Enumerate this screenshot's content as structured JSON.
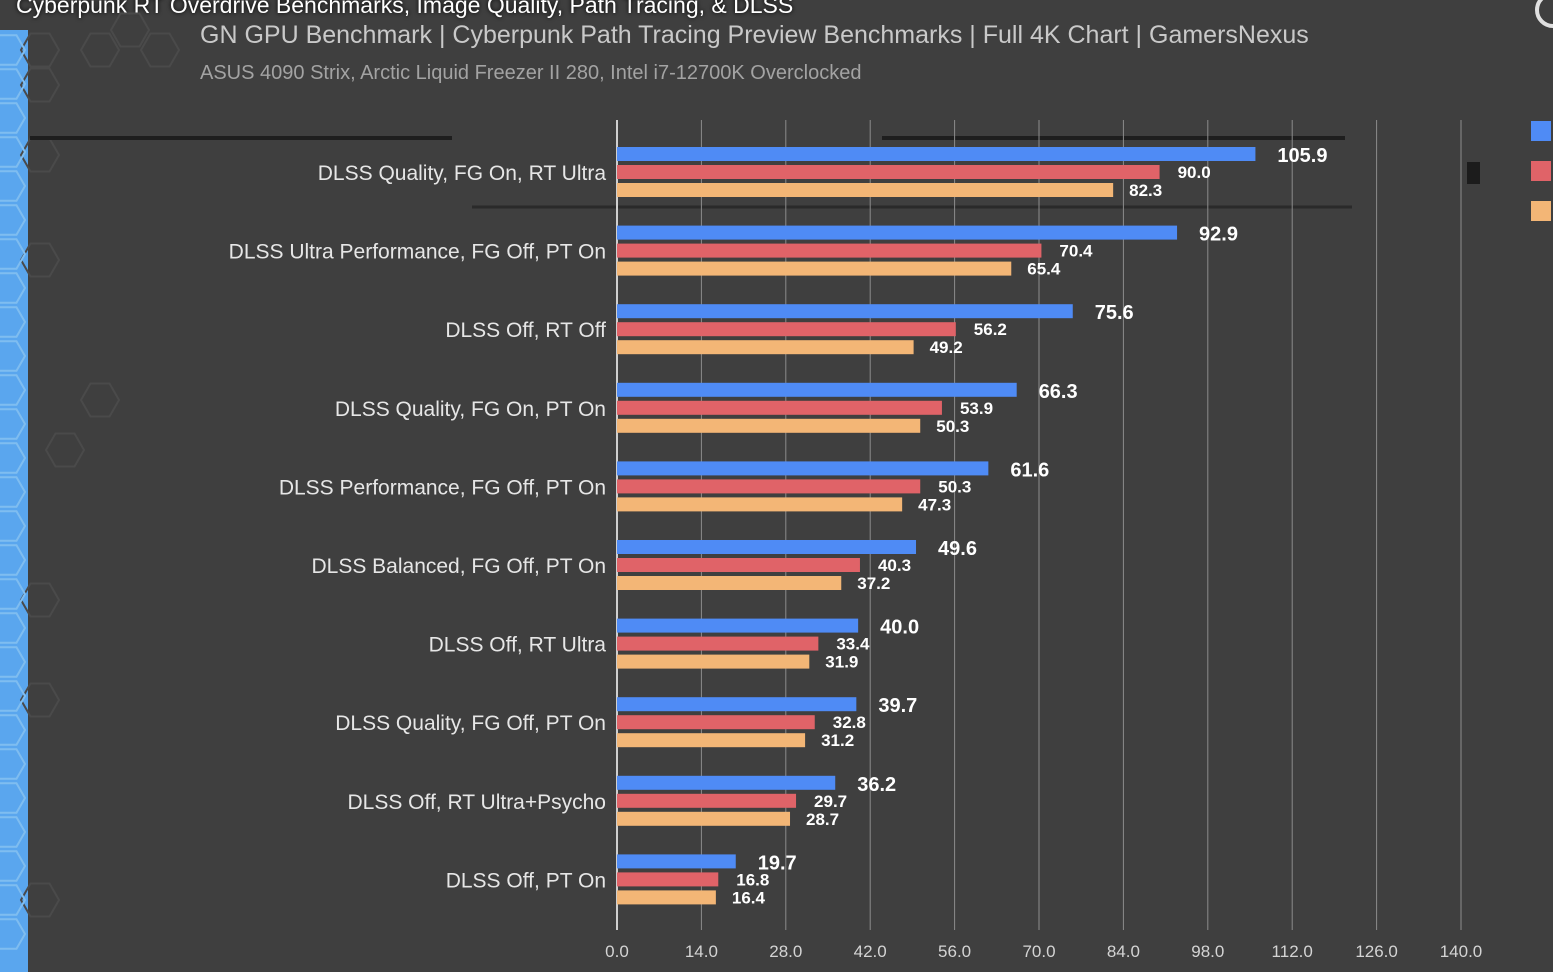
{
  "video_title": "Cyberpunk RT Overdrive Benchmarks, Image Quality, Path Tracing, & DLSS",
  "colors": {
    "series1": "#4f8bf5",
    "series2": "#e06368",
    "series3": "#f3b676",
    "background": "#3f3f3f"
  },
  "chart_data": {
    "type": "bar",
    "orientation": "horizontal",
    "title": "GN GPU Benchmark | Cyberpunk Path Tracing Preview Benchmarks | Full 4K Chart | GamersNexus",
    "subtitle": "ASUS 4090 Strix, Arctic Liquid Freezer II 280, Intel i7-12700K Overclocked",
    "categories": [
      "DLSS Quality, FG On, RT Ultra",
      "DLSS Ultra Performance, FG Off, PT On",
      "DLSS Off, RT Off",
      "DLSS Quality, FG On, PT On",
      "DLSS Performance, FG Off, PT On",
      "DLSS Balanced, FG Off, PT On",
      "DLSS Off, RT Ultra",
      "DLSS Quality, FG Off, PT On",
      "DLSS Off, RT Ultra+Psycho",
      "DLSS Off, PT On"
    ],
    "series": [
      {
        "color": "#4f8bf5",
        "values": [
          105.9,
          92.9,
          75.6,
          66.3,
          61.6,
          49.6,
          40.0,
          39.7,
          36.2,
          19.7
        ]
      },
      {
        "color": "#e06368",
        "values": [
          90.0,
          70.4,
          56.2,
          53.9,
          50.3,
          40.3,
          33.4,
          32.8,
          29.7,
          16.8
        ]
      },
      {
        "color": "#f3b676",
        "values": [
          82.3,
          65.4,
          49.2,
          50.3,
          47.3,
          37.2,
          31.9,
          31.2,
          28.7,
          16.4
        ]
      }
    ],
    "xticks": [
      "0.0",
      "14.0",
      "28.0",
      "42.0",
      "56.0",
      "70.0",
      "84.0",
      "98.0",
      "112.0",
      "126.0",
      "140.0"
    ],
    "xlim": [
      0,
      140
    ],
    "grid": true,
    "legend_position": "right"
  }
}
